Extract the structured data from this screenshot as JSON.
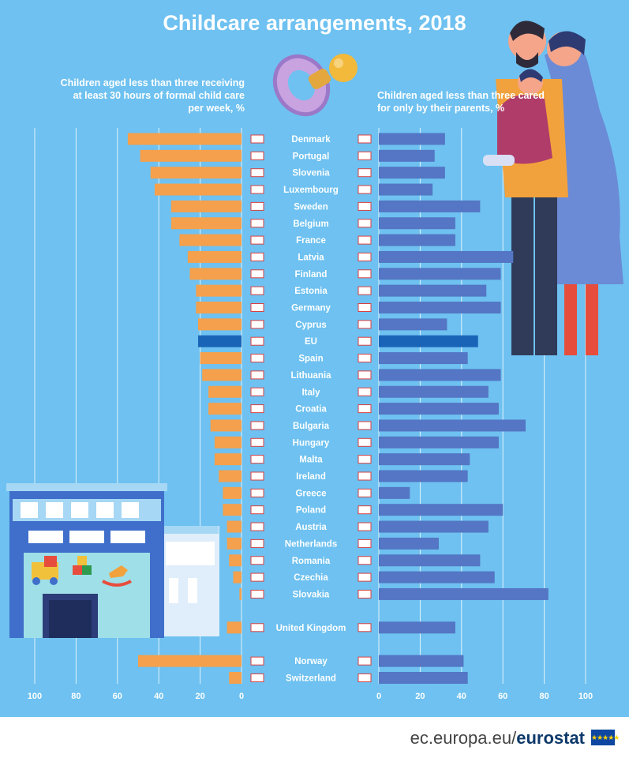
{
  "title": "Childcare arrangements, 2018",
  "left_subtitle": "Children aged less than three receiving at least 30 hours of formal child care per week, %",
  "right_subtitle": "Children aged less than three cared for only by their parents, %",
  "footer": {
    "url_prefix": "ec.europa.eu/",
    "url_brand": "eurostat"
  },
  "colors": {
    "background": "#6ec1f0",
    "left_bar": "#f5a04c",
    "right_bar": "#5476c4",
    "eu_bar": "#1a64b8",
    "text": "#ffffff",
    "gridline": "#ffffff"
  },
  "icons": {
    "eu_flag": "eu-flag-icon",
    "pacifier": "pacifier-icon",
    "family": "family-illustration",
    "building": "nursery-building-illustration"
  },
  "chart_data": {
    "type": "bar",
    "orientation": "horizontal-diverging",
    "title": "Childcare arrangements, 2018",
    "series": [
      {
        "name": "Children aged less than three receiving at least 30 hours of formal child care per week, %",
        "side": "left",
        "values": [
          55,
          49,
          44,
          42,
          34,
          34,
          30,
          26,
          25,
          22,
          22,
          21,
          21,
          20,
          19,
          16,
          16,
          15,
          13,
          13,
          11,
          9,
          9,
          7,
          7,
          6,
          4,
          1,
          7,
          50,
          6
        ]
      },
      {
        "name": "Children aged less than three cared for only by their parents, %",
        "side": "right",
        "values": [
          32,
          27,
          32,
          26,
          49,
          37,
          37,
          65,
          59,
          52,
          59,
          33,
          48,
          43,
          59,
          53,
          58,
          71,
          58,
          44,
          43,
          15,
          60,
          53,
          29,
          49,
          56,
          82,
          37,
          41,
          43
        ]
      }
    ],
    "categories": [
      "Denmark",
      "Portugal",
      "Slovenia",
      "Luxembourg",
      "Sweden",
      "Belgium",
      "France",
      "Latvia",
      "Finland",
      "Estonia",
      "Germany",
      "Cyprus",
      "EU",
      "Spain",
      "Lithuania",
      "Italy",
      "Croatia",
      "Bulgaria",
      "Hungary",
      "Malta",
      "Ireland",
      "Greece",
      "Poland",
      "Austria",
      "Netherlands",
      "Romania",
      "Czechia",
      "Slovakia",
      "United Kingdom",
      "Norway",
      "Switzerland"
    ],
    "highlight": "EU",
    "left_axis": {
      "ticks": [
        100,
        80,
        60,
        40,
        20,
        0
      ],
      "range": [
        0,
        100
      ]
    },
    "right_axis": {
      "ticks": [
        0,
        20,
        40,
        60,
        80,
        100
      ],
      "range": [
        0,
        100
      ]
    },
    "grid": true
  }
}
